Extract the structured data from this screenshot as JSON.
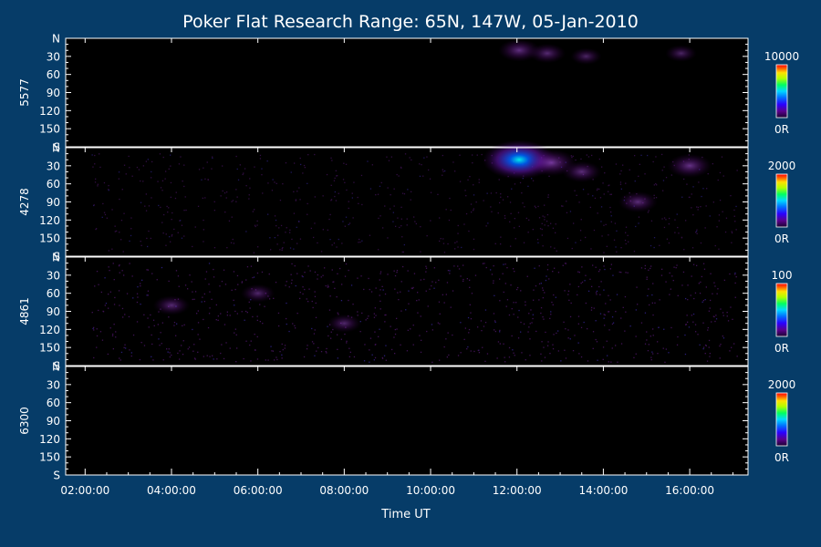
{
  "title": "Poker Flat Research Range: 65N, 147W, 05-Jan-2010",
  "xlabel": "Time UT",
  "chart_data": {
    "type": "heatmap",
    "title": "Poker Flat Research Range: 65N, 147W, 05-Jan-2010",
    "xlabel": "Time UT",
    "x_tick_labels": [
      "02:00:00",
      "04:00:00",
      "06:00:00",
      "08:00:00",
      "10:00:00",
      "12:00:00",
      "14:00:00",
      "16:00:00"
    ],
    "x_tick_hours": [
      2,
      4,
      6,
      8,
      10,
      12,
      14,
      16
    ],
    "xlim_hours": [
      1.55,
      17.35
    ],
    "y_tick_labels": [
      "N",
      "30",
      "60",
      "90",
      "120",
      "150",
      "S"
    ],
    "y_tick_values": [
      0,
      30,
      60,
      90,
      120,
      150,
      180
    ],
    "ylim": [
      0,
      180
    ],
    "colormap": [
      "#1a0030",
      "#5a008c",
      "#2a00ff",
      "#0070ff",
      "#00d8ff",
      "#00ff60",
      "#b0ff00",
      "#ffe000",
      "#ff6000",
      "#ff0000"
    ],
    "panels": [
      {
        "name": "5577",
        "colorbar_max": "10000",
        "colorbar_min": "0R",
        "emission": [
          {
            "t": 12.05,
            "angle": 20,
            "intensity": 0.35
          },
          {
            "t": 12.7,
            "angle": 25,
            "intensity": 0.25
          },
          {
            "t": 13.6,
            "angle": 30,
            "intensity": 0.15
          },
          {
            "t": 15.8,
            "angle": 25,
            "intensity": 0.15
          }
        ]
      },
      {
        "name": "4278",
        "colorbar_max": "2000",
        "colorbar_min": "0R",
        "emission": [
          {
            "t": 12.05,
            "angle": 20,
            "intensity": 0.95
          },
          {
            "t": 12.8,
            "angle": 25,
            "intensity": 0.5
          },
          {
            "t": 13.5,
            "angle": 40,
            "intensity": 0.3
          },
          {
            "t": 16.0,
            "angle": 30,
            "intensity": 0.4
          },
          {
            "t": 14.8,
            "angle": 90,
            "intensity": 0.3
          }
        ]
      },
      {
        "name": "4861",
        "colorbar_max": "100",
        "colorbar_min": "0R",
        "emission": [
          {
            "t": 4.0,
            "angle": 80,
            "intensity": 0.25
          },
          {
            "t": 6.0,
            "angle": 60,
            "intensity": 0.2
          },
          {
            "t": 8.0,
            "angle": 110,
            "intensity": 0.2
          }
        ]
      },
      {
        "name": "6300",
        "colorbar_max": "2000",
        "colorbar_min": "0R",
        "emission": []
      }
    ]
  }
}
